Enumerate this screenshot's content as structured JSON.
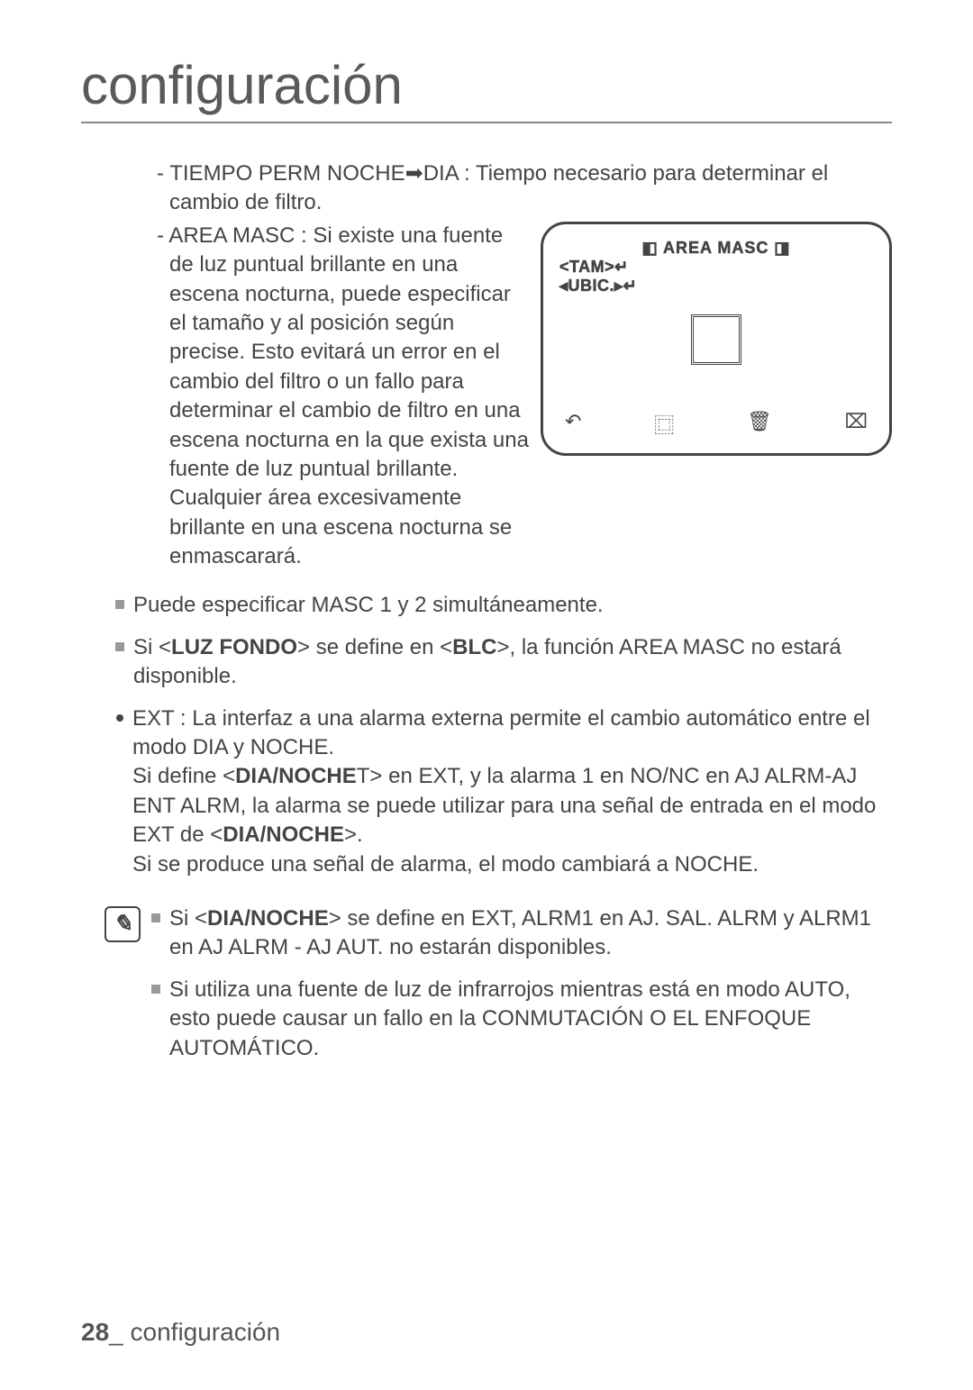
{
  "page": {
    "title": "configuración",
    "number": "28",
    "footer_label": "configuración"
  },
  "items": {
    "tiempo_perm": "- TIEMPO PERM NOCHE➡DIA : Tiempo necesario para determinar el cambio de filtro.",
    "area_masc": "- AREA MASC : Si existe una fuente de luz puntual brillante en una escena nocturna, puede especificar el tamaño y al posición según precise. Esto evitará un error en el cambio del filtro o un fallo para determinar el cambio de filtro en una escena nocturna en la que exista una fuente de luz puntual brillante. Cualquier área excesivamente brillante en una escena nocturna se enmascarará."
  },
  "diagram": {
    "title": "◧ AREA MASC ◨",
    "line1": "<TAM>↵",
    "line2": "◂UBIC.▸↵",
    "icon1": "↶",
    "icon2": "⿴",
    "icon3": "🗑",
    "icon4": "⌧"
  },
  "bullets": {
    "b1": "Puede especificar MASC 1 y 2 simultáneamente.",
    "b2_pre": "Si <",
    "b2_bold1": "LUZ FONDO",
    "b2_mid": "> se define en <",
    "b2_bold2": "BLC",
    "b2_post": ">, la función AREA MASC no estará disponible.",
    "ext_p1": "EXT : La interfaz a una alarma externa permite el cambio automático entre el modo DIA y NOCHE.",
    "ext_p2_pre": "Si define <",
    "ext_p2_bold": "DIA/NOCHE",
    "ext_p2_mid": "T> en EXT, y la alarma 1 en NO/NC en AJ ALRM-AJ ENT ALRM, la alarma se puede utilizar para una señal de entrada en el modo EXT de <",
    "ext_p2_bold2": "DIA/NOCHE",
    "ext_p2_post": ">.",
    "ext_p3": "Si se produce una señal de alarma, el modo cambiará a NOCHE."
  },
  "notes": {
    "n1_pre": "Si <",
    "n1_bold": "DIA/NOCHE",
    "n1_post": "> se define en EXT, ALRM1 en AJ. SAL. ALRM y ALRM1 en AJ ALRM - AJ AUT. no estarán disponibles.",
    "n2": "Si utiliza una fuente de luz de infrarrojos mientras está en modo AUTO, esto puede causar un fallo en la CONMUTACIÓN O EL ENFOQUE AUTOMÁTICO."
  }
}
